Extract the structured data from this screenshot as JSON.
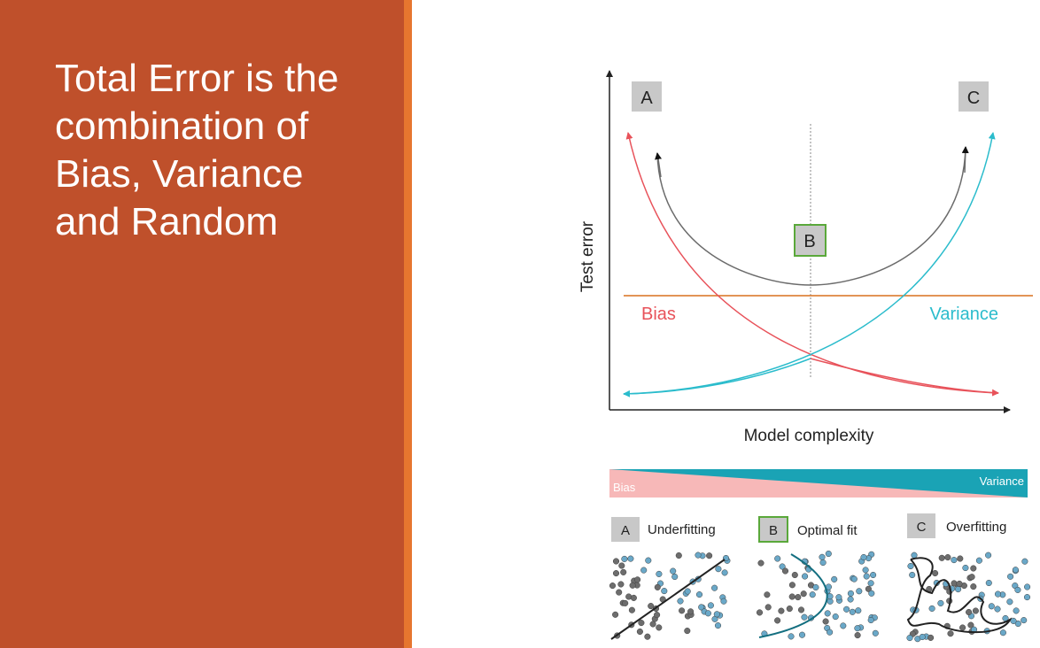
{
  "slide": {
    "title": "Total Error is the\ncombination of\nBias, Variance\nand Random"
  },
  "diagram": {
    "y_axis_label": "Test error",
    "x_axis_label": "Model complexity",
    "point_labels": {
      "a": "A",
      "b": "B",
      "c": "C"
    },
    "bias_label": "Bias",
    "variance_label": "Variance",
    "colors": {
      "bias": "#e8525a",
      "variance": "#2bbccc",
      "total": "#6b6b6b",
      "random_line": "#d9701f",
      "optimal_box_border": "#5aa83a",
      "label_box": "#c8c8c8",
      "bias_band": "#f7b8b8",
      "variance_band": "#1aa3b5",
      "point_gray": "#6d6d6d",
      "point_blue": "#6aa8c8"
    }
  },
  "tradeoff_band": {
    "bias_label": "Bias",
    "variance_label": "Variance"
  },
  "fit_examples": [
    {
      "letter": "A",
      "label": "Underfitting"
    },
    {
      "letter": "B",
      "label": "Optimal fit"
    },
    {
      "letter": "C",
      "label": "Overfitting"
    }
  ]
}
